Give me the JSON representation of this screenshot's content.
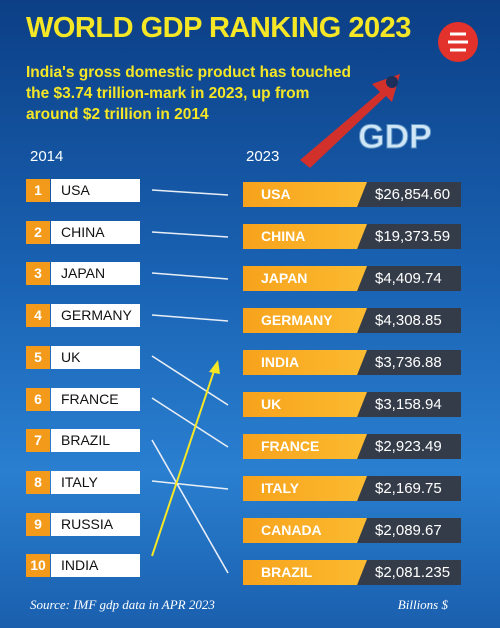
{
  "title": "WORLD GDP RANKING 2023",
  "subtitle_lines": [
    "India's gross domestic product has touched",
    "the $3.74 trillion-mark in 2023, up from",
    "around $2 trillion in 2014"
  ],
  "badge": "GDP",
  "left_header": "2014",
  "right_header": "2023",
  "ranking_2014": [
    {
      "rank": "1",
      "country": "USA"
    },
    {
      "rank": "2",
      "country": "CHINA"
    },
    {
      "rank": "3",
      "country": "JAPAN"
    },
    {
      "rank": "4",
      "country": "GERMANY"
    },
    {
      "rank": "5",
      "country": "UK"
    },
    {
      "rank": "6",
      "country": "FRANCE"
    },
    {
      "rank": "7",
      "country": "BRAZIL"
    },
    {
      "rank": "8",
      "country": "ITALY"
    },
    {
      "rank": "9",
      "country": "RUSSIA"
    },
    {
      "rank": "10",
      "country": "INDIA"
    }
  ],
  "ranking_2023": [
    {
      "country": "USA",
      "gdp": "$26,854.60"
    },
    {
      "country": "CHINA",
      "gdp": "$19,373.59"
    },
    {
      "country": "JAPAN",
      "gdp": "$4,409.74"
    },
    {
      "country": "GERMANY",
      "gdp": "$4,308.85"
    },
    {
      "country": "INDIA",
      "gdp": "$3,736.88"
    },
    {
      "country": "UK",
      "gdp": "$3,158.94"
    },
    {
      "country": "FRANCE",
      "gdp": "$2,923.49"
    },
    {
      "country": "ITALY",
      "gdp": "$2,169.75"
    },
    {
      "country": "CANADA",
      "gdp": "$2,089.67"
    },
    {
      "country": "BRAZIL",
      "gdp": "$2,081.235"
    }
  ],
  "source": "Source: IMF gdp data in APR 2023",
  "unit": "Billions $"
}
